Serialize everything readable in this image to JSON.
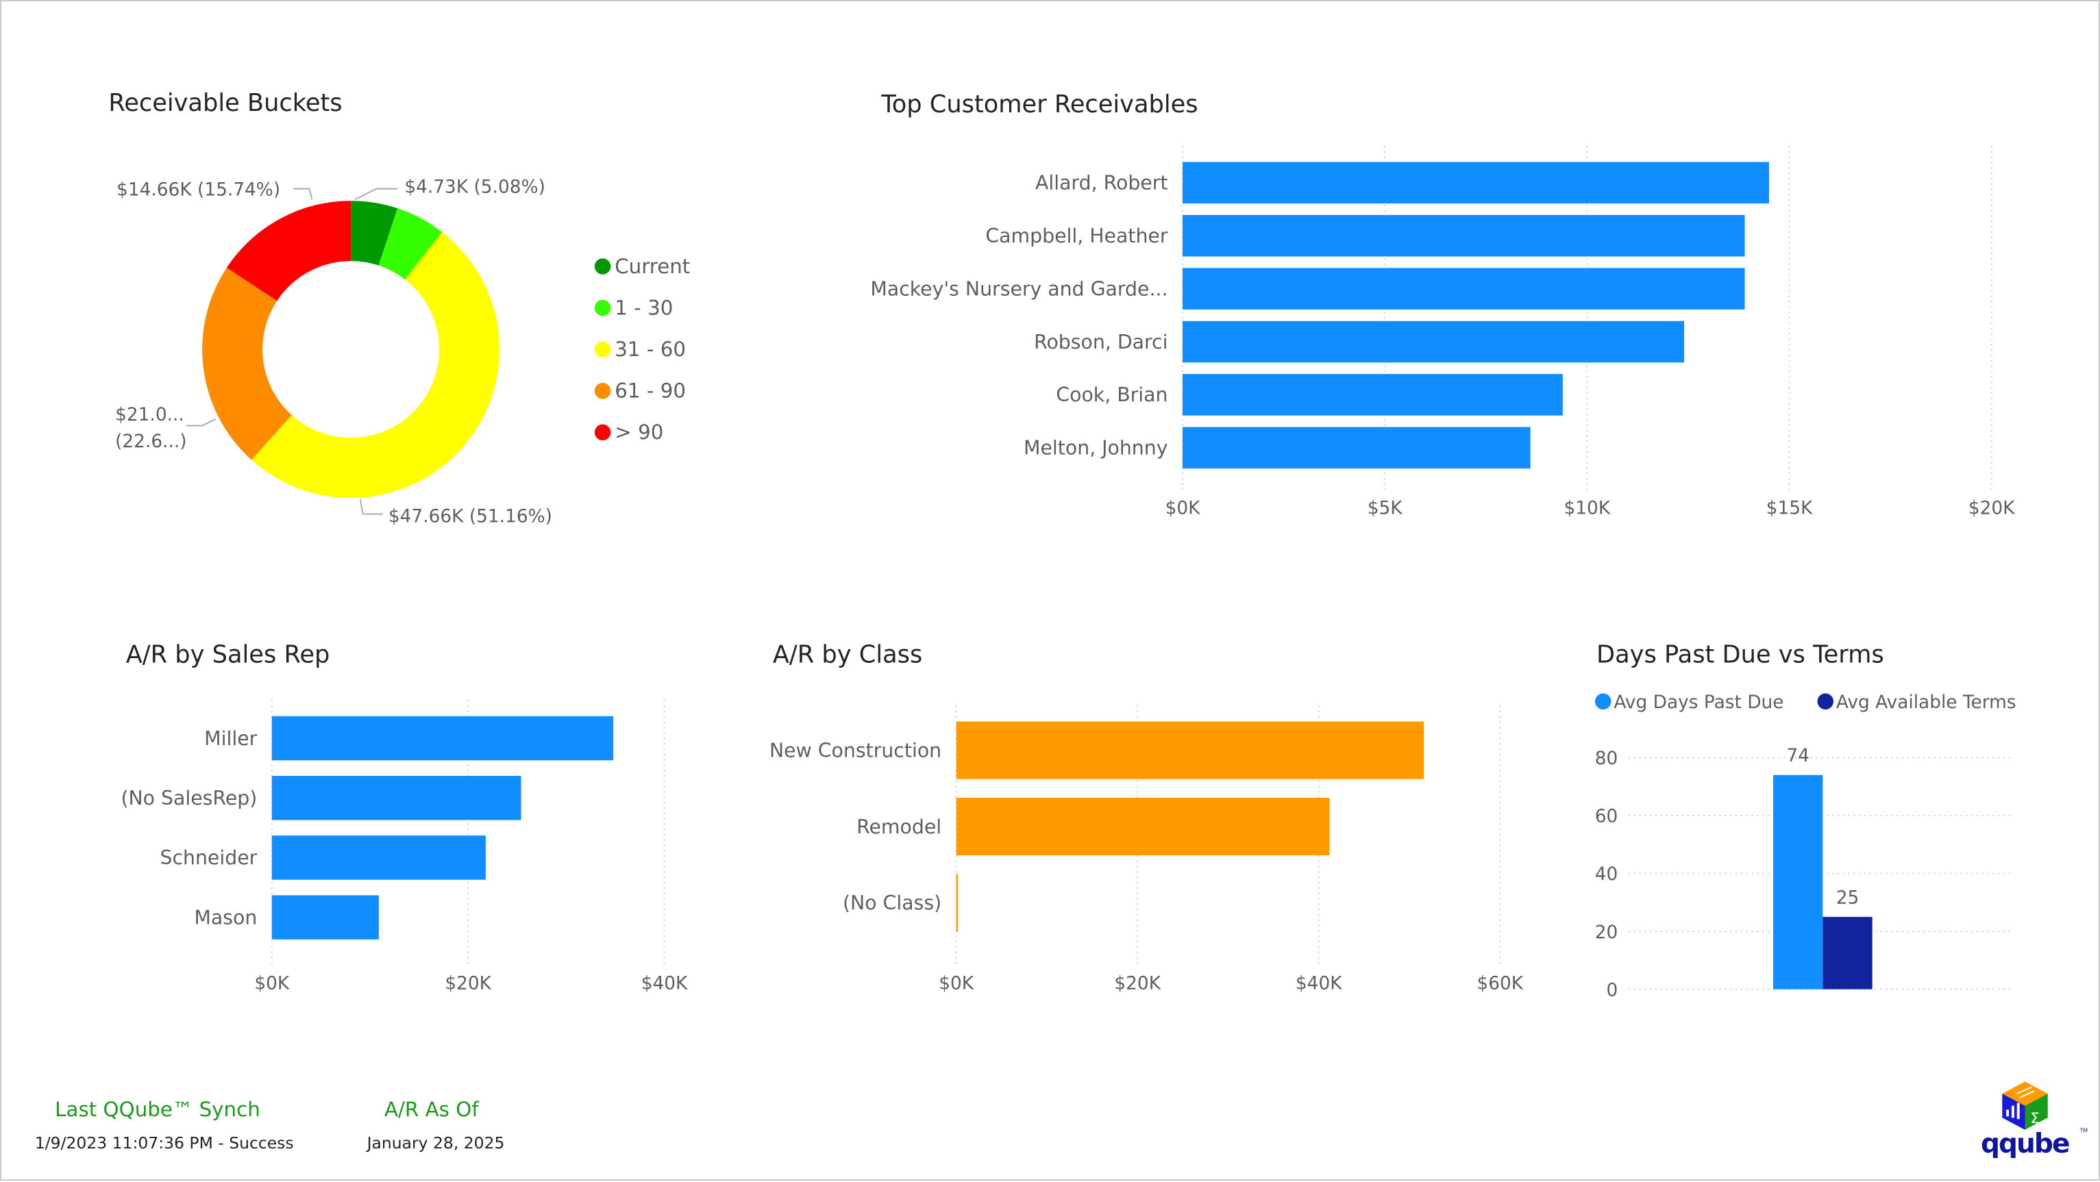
{
  "colors": {
    "bar_blue": "#118dff",
    "bar_orange": "#ff9b00",
    "dark_blue": "#12239e",
    "axis_text": "#605e5c",
    "footer_green": "#1a9c1a"
  },
  "titles": {
    "buckets": "Receivable Buckets",
    "top_customers": "Top Customer Receivables",
    "sales_rep": "A/R by Sales Rep",
    "by_class": "A/R by Class",
    "days": "Days Past Due vs Terms"
  },
  "chart_data": [
    {
      "id": "buckets",
      "type": "pie",
      "donut": true,
      "title": "Receivable Buckets",
      "legend_position": "right",
      "slices": [
        {
          "name": "Current",
          "color": "#009900",
          "share_pct": 5.08,
          "label": "$4.73K (5.08%)"
        },
        {
          "name": "1 - 30",
          "color": "#33ff00",
          "share_pct": 5.42,
          "label": ""
        },
        {
          "name": "31 - 60",
          "color": "#ffff00",
          "share_pct": 51.16,
          "label": "$47.66K (51.16%)"
        },
        {
          "name": "61 - 90",
          "color": "#ff8c00",
          "share_pct": 22.6,
          "label": "$21.0...",
          "label2": "(22.6...)"
        },
        {
          "name": "> 90",
          "color": "#ff0000",
          "share_pct": 15.74,
          "label": "$14.66K (15.74%)"
        }
      ]
    },
    {
      "id": "top_customers",
      "type": "bar",
      "orientation": "horizontal",
      "title": "Top Customer Receivables",
      "categories": [
        "Allard, Robert",
        "Campbell, Heather",
        "Mackey's Nursery and Garde...",
        "Robson, Darci",
        "Cook, Brian",
        "Melton, Johnny"
      ],
      "values": [
        14500,
        13900,
        13900,
        12400,
        9400,
        8600
      ],
      "xlim": [
        0,
        20000
      ],
      "ticks": [
        0,
        5000,
        10000,
        15000,
        20000
      ],
      "tick_labels": [
        "$0K",
        "$5K",
        "$10K",
        "$15K",
        "$20K"
      ],
      "grid": true
    },
    {
      "id": "sales_rep",
      "type": "bar",
      "orientation": "horizontal",
      "title": "A/R by Sales Rep",
      "categories": [
        "Miller",
        "(No SalesRep)",
        "Schneider",
        "Mason"
      ],
      "values": [
        34800,
        25400,
        21800,
        10900
      ],
      "xlim": [
        0,
        40000
      ],
      "ticks": [
        0,
        20000,
        40000
      ],
      "tick_labels": [
        "$0K",
        "$20K",
        "$40K"
      ],
      "grid": true
    },
    {
      "id": "by_class",
      "type": "bar",
      "orientation": "horizontal",
      "title": "A/R by Class",
      "categories": [
        "New Construction",
        "Remodel",
        "(No Class)"
      ],
      "values": [
        51600,
        41200,
        200
      ],
      "xlim": [
        0,
        60000
      ],
      "ticks": [
        0,
        20000,
        40000,
        60000
      ],
      "tick_labels": [
        "$0K",
        "$20K",
        "$40K",
        "$60K"
      ],
      "grid": true
    },
    {
      "id": "days",
      "type": "bar",
      "orientation": "vertical",
      "title": "Days Past Due vs Terms",
      "legend_position": "top-left",
      "series": [
        {
          "name": "Avg Days Past Due",
          "values": [
            74
          ],
          "color": "#118dff"
        },
        {
          "name": "Avg Available Terms",
          "values": [
            25
          ],
          "color": "#12239e"
        }
      ],
      "ylim": [
        0,
        80
      ],
      "yticks": [
        0,
        20,
        40,
        60,
        80
      ],
      "data_labels": [
        "74",
        "25"
      ],
      "grid": true
    }
  ],
  "footer": {
    "sync_label": "Last QQube™ Synch",
    "sync_value": "1/9/2023 11:07:36 PM - Success",
    "asof_label": "A/R As Of",
    "asof_value": "January 28, 2025"
  },
  "logo": {
    "text": "qqube",
    "tm": "TM"
  }
}
